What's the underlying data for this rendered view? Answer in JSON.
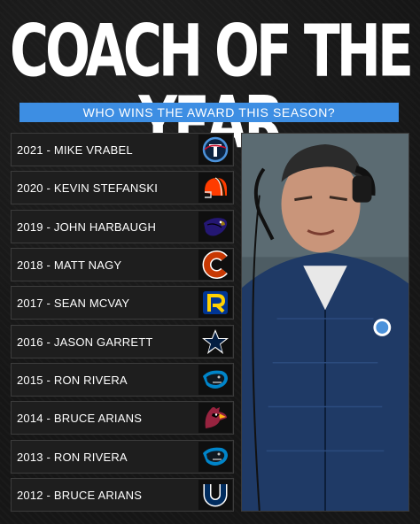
{
  "header": {
    "title": "COACH OF THE YEAR",
    "subtitle": "WHO WINS THE AWARD THIS SEASON?"
  },
  "winners": [
    {
      "label": "2021 - MIKE VRABEL",
      "team_logo": "titans-logo-icon"
    },
    {
      "label": "2020 - KEVIN STEFANSKI",
      "team_logo": "browns-helmet-icon"
    },
    {
      "label": "2019 - JOHN HARBAUGH",
      "team_logo": "ravens-logo-icon"
    },
    {
      "label": "2018 - MATT NAGY",
      "team_logo": "bears-logo-icon"
    },
    {
      "label": "2017 - SEAN MCVAY",
      "team_logo": "rams-logo-icon"
    },
    {
      "label": "2016 - JASON GARRETT",
      "team_logo": "cowboys-star-icon"
    },
    {
      "label": "2015 - RON RIVERA",
      "team_logo": "panthers-logo-icon"
    },
    {
      "label": "2014 - BRUCE ARIANS",
      "team_logo": "cardinals-logo-icon"
    },
    {
      "label": "2013 - RON RIVERA",
      "team_logo": "panthers-logo-icon"
    },
    {
      "label": "2012 - BRUCE ARIANS",
      "team_logo": "colts-horseshoe-icon"
    }
  ],
  "colors": {
    "accent_bar": "#3d8ee3",
    "background": "#161616",
    "row_background": "#1e1e1e"
  }
}
